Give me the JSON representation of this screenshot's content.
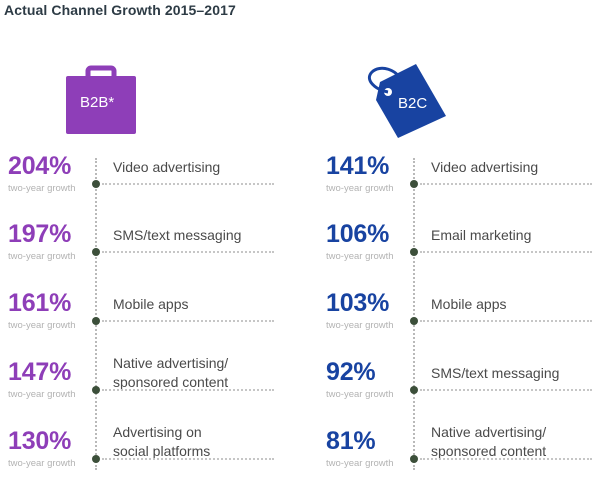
{
  "title": "Actual Channel Growth 2015–2017",
  "colors": {
    "b2b": "#8e3eb8",
    "b2c": "#1843a1"
  },
  "chart_data": [
    {
      "type": "table",
      "title": "B2B*",
      "icon": "briefcase-icon",
      "items": [
        {
          "value": 204,
          "percent": "204%",
          "sub": "two-year growth",
          "label": [
            "Video advertising"
          ]
        },
        {
          "value": 197,
          "percent": "197%",
          "sub": "two-year growth",
          "label": [
            "SMS/text messaging"
          ]
        },
        {
          "value": 161,
          "percent": "161%",
          "sub": "two-year growth",
          "label": [
            "Mobile apps"
          ]
        },
        {
          "value": 147,
          "percent": "147%",
          "sub": "two-year growth",
          "label": [
            "Native advertising/",
            "sponsored content"
          ]
        },
        {
          "value": 130,
          "percent": "130%",
          "sub": "two-year growth",
          "label": [
            "Advertising on",
            "social platforms"
          ]
        }
      ]
    },
    {
      "type": "table",
      "title": "B2C",
      "icon": "price-tag-icon",
      "items": [
        {
          "value": 141,
          "percent": "141%",
          "sub": "two-year growth",
          "label": [
            "Video advertising"
          ]
        },
        {
          "value": 106,
          "percent": "106%",
          "sub": "two-year growth",
          "label": [
            "Email marketing"
          ]
        },
        {
          "value": 103,
          "percent": "103%",
          "sub": "two-year growth",
          "label": [
            "Mobile apps"
          ]
        },
        {
          "value": 92,
          "percent": "92%",
          "sub": "two-year growth",
          "label": [
            "SMS/text messaging"
          ]
        },
        {
          "value": 81,
          "percent": "81%",
          "sub": "two-year growth",
          "label": [
            "Native advertising/",
            "sponsored content"
          ]
        }
      ]
    }
  ]
}
